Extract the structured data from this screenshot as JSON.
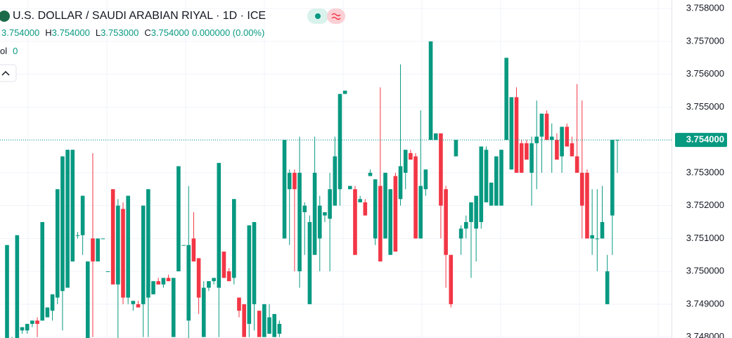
{
  "chart_data": {
    "type": "candlestick",
    "title": "U.S. DOLLAR / SAUDI ARABIAN RIYAL · 1D · ICE",
    "ohlc": [
      {
        "value": "3.754000"
      },
      {
        "prefix": "H",
        "value": "3.754000"
      },
      {
        "prefix": "L",
        "value": "3.753000"
      },
      {
        "prefix": "C",
        "value": "3.754000"
      }
    ],
    "change": "0.000000 (0.00%)",
    "volume_label": "ol",
    "volume_value": "0",
    "up_color": "#089981",
    "down_color": "#f23645",
    "ylim": [
      3.74797,
      3.75826
    ],
    "yticks": [
      {
        "value": 3.748,
        "label": "3.748000"
      },
      {
        "value": 3.749,
        "label": "3.749000"
      },
      {
        "value": 3.75,
        "label": "3.750000"
      },
      {
        "value": 3.751,
        "label": "3.751000"
      },
      {
        "value": 3.752,
        "label": "3.752000"
      },
      {
        "value": 3.753,
        "label": "3.753000"
      },
      {
        "value": 3.754,
        "label": "3.754000"
      },
      {
        "value": 3.755,
        "label": "3.755000"
      },
      {
        "value": 3.756,
        "label": "3.756000"
      },
      {
        "value": 3.757,
        "label": "3.757000"
      },
      {
        "value": 3.758,
        "label": "3.758000"
      }
    ],
    "last_price": {
      "value": 3.754,
      "label": "3.754000"
    },
    "grid": true,
    "candles": [
      [
        3.7478,
        3.7508,
        3.7477,
        3.7508
      ],
      [
        3.7479,
        3.748,
        3.7478,
        3.7479
      ],
      [
        3.7479,
        3.7511,
        3.7478,
        3.7511
      ],
      [
        3.7482,
        3.7483,
        3.7481,
        3.7483
      ],
      [
        3.7482,
        3.7484,
        3.7481,
        3.7484
      ],
      [
        3.7484,
        3.7485,
        3.7483,
        3.7485
      ],
      [
        3.7485,
        3.7486,
        3.748,
        3.7484
      ],
      [
        3.7485,
        3.7515,
        3.7485,
        3.7515
      ],
      [
        3.7486,
        3.7489,
        3.7486,
        3.7489
      ],
      [
        3.7488,
        3.7493,
        3.7485,
        3.7493
      ],
      [
        3.7492,
        3.7525,
        3.749,
        3.7525
      ],
      [
        3.7494,
        3.7535,
        3.7482,
        3.7535
      ],
      [
        3.7495,
        3.7537,
        3.7495,
        3.7537
      ],
      [
        3.7503,
        3.7537,
        3.7503,
        3.7537
      ],
      [
        3.7511,
        3.7512,
        3.751,
        3.7511
      ],
      [
        3.7511,
        3.7523,
        3.7505,
        3.7523
      ],
      [
        3.7478,
        3.7503,
        3.7477,
        3.7503
      ],
      [
        3.751,
        3.7536,
        3.748,
        3.7503
      ],
      [
        3.7503,
        3.751,
        3.7503,
        3.751
      ],
      [
        3.751,
        3.751,
        3.751,
        3.751
      ],
      [
        3.75,
        3.75,
        3.75,
        3.75
      ],
      [
        3.7525,
        3.7525,
        3.7496,
        3.7496
      ],
      [
        3.7496,
        3.7522,
        3.7478,
        3.752
      ],
      [
        3.7519,
        3.7521,
        3.749,
        3.7492
      ],
      [
        3.7492,
        3.7523,
        3.749,
        3.7523
      ],
      [
        3.749,
        3.7491,
        3.7488,
        3.7491
      ],
      [
        3.749,
        3.7491,
        3.7489,
        3.7489
      ],
      [
        3.749,
        3.752,
        3.748,
        3.752
      ],
      [
        3.7492,
        3.7525,
        3.748,
        3.7525
      ],
      [
        3.7493,
        3.7497,
        3.7493,
        3.7497
      ],
      [
        3.7497,
        3.7498,
        3.7496,
        3.7496
      ],
      [
        3.7496,
        3.7498,
        3.7495,
        3.7498
      ],
      [
        3.7498,
        3.7499,
        3.7497,
        3.7497
      ],
      [
        3.748,
        3.7498,
        3.748,
        3.7498
      ],
      [
        3.75,
        3.7532,
        3.75,
        3.7532
      ],
      [
        3.7508,
        3.7508,
        3.7508,
        3.7508
      ],
      [
        3.7485,
        3.7526,
        3.7478,
        3.7508
      ],
      [
        3.751,
        3.7518,
        3.7503,
        3.7503
      ],
      [
        3.7504,
        3.7504,
        3.7487,
        3.7492
      ],
      [
        3.748,
        3.7497,
        3.748,
        3.7495
      ],
      [
        3.7495,
        3.7497,
        3.7494,
        3.7497
      ],
      [
        3.7497,
        3.7498,
        3.7496,
        3.7498
      ],
      [
        3.7495,
        3.7533,
        3.748,
        3.7533
      ],
      [
        3.7506,
        3.7506,
        3.7498,
        3.7498
      ],
      [
        3.75,
        3.7501,
        3.7497,
        3.7497
      ],
      [
        3.7498,
        3.7522,
        3.7496,
        3.7522
      ],
      [
        3.7492,
        3.7492,
        3.7486,
        3.7488
      ],
      [
        3.749,
        3.749,
        3.748,
        3.748
      ],
      [
        3.7484,
        3.7514,
        3.748,
        3.7514
      ],
      [
        3.749,
        3.7515,
        3.7482,
        3.7515
      ],
      [
        3.7488,
        3.7488,
        3.748,
        3.748
      ],
      [
        3.748,
        3.749,
        3.748,
        3.749
      ],
      [
        3.7481,
        3.749,
        3.7481,
        3.7486
      ],
      [
        3.748,
        3.7487,
        3.748,
        3.7487
      ],
      [
        3.7481,
        3.7485,
        3.748,
        3.7484
      ],
      [
        3.751,
        3.754,
        3.751,
        3.754
      ],
      [
        3.7525,
        3.7531,
        3.7508,
        3.753
      ],
      [
        3.753,
        3.7531,
        3.75,
        3.7525
      ],
      [
        3.75,
        3.7541,
        3.7495,
        3.753
      ],
      [
        3.7518,
        3.7521,
        3.7505,
        3.752
      ],
      [
        3.749,
        3.7517,
        3.749,
        3.7515
      ],
      [
        3.7505,
        3.7541,
        3.7505,
        3.753
      ],
      [
        3.751,
        3.7523,
        3.75,
        3.752
      ],
      [
        3.7517,
        3.7518,
        3.7515,
        3.7518
      ],
      [
        3.7516,
        3.753,
        3.75,
        3.7525
      ],
      [
        3.752,
        3.7541,
        3.752,
        3.7535
      ],
      [
        3.7525,
        3.7554,
        3.752,
        3.7554
      ],
      [
        3.7554,
        3.7555,
        3.7554,
        3.7555
      ],
      [
        3.7525,
        3.7526,
        3.7525,
        3.7526
      ],
      [
        3.7525,
        3.7526,
        3.7505,
        3.7505
      ],
      [
        3.7521,
        3.7523,
        3.7521,
        3.7522
      ],
      [
        3.7521,
        3.7522,
        3.7517,
        3.7517
      ],
      [
        3.7529,
        3.7531,
        3.7529,
        3.753
      ],
      [
        3.751,
        3.7528,
        3.7508,
        3.7528
      ],
      [
        3.7526,
        3.7556,
        3.7503,
        3.7503
      ],
      [
        3.751,
        3.753,
        3.751,
        3.753
      ],
      [
        3.7505,
        3.7525,
        3.7505,
        3.7525
      ],
      [
        3.7529,
        3.753,
        3.7506,
        3.7506
      ],
      [
        3.7522,
        3.7563,
        3.752,
        3.7532
      ],
      [
        3.753,
        3.7537,
        3.7525,
        3.7537
      ],
      [
        3.7536,
        3.7537,
        3.7534,
        3.7534
      ],
      [
        3.7535,
        3.7536,
        3.751,
        3.751
      ],
      [
        3.751,
        3.7549,
        3.751,
        3.7526
      ],
      [
        3.7525,
        3.7531,
        3.7523,
        3.7531
      ],
      [
        3.754,
        3.757,
        3.754,
        3.757
      ],
      [
        3.754,
        3.7542,
        3.754,
        3.7542
      ],
      [
        3.7542,
        3.7542,
        3.751,
        3.752
      ],
      [
        3.7525,
        3.7526,
        3.7495,
        3.7505
      ],
      [
        3.7505,
        3.7505,
        3.7489,
        3.749
      ],
      [
        3.7535,
        3.754,
        3.7535,
        3.754
      ],
      [
        3.751,
        3.7514,
        3.7505,
        3.7513
      ],
      [
        3.7513,
        3.7517,
        3.751,
        3.7515
      ],
      [
        3.7515,
        3.7521,
        3.7498,
        3.7521
      ],
      [
        3.7513,
        3.7523,
        3.7503,
        3.7523
      ],
      [
        3.7515,
        3.7538,
        3.7513,
        3.7538
      ],
      [
        3.7521,
        3.7538,
        3.7521,
        3.7537
      ],
      [
        3.752,
        3.7527,
        3.752,
        3.7527
      ],
      [
        3.752,
        3.7535,
        3.752,
        3.7535
      ],
      [
        3.752,
        3.7537,
        3.752,
        3.7537
      ],
      [
        3.754,
        3.7565,
        3.754,
        3.7565
      ],
      [
        3.7531,
        3.7553,
        3.7531,
        3.7553
      ],
      [
        3.7553,
        3.7556,
        3.753,
        3.753
      ],
      [
        3.7539,
        3.754,
        3.753,
        3.753
      ],
      [
        3.7539,
        3.754,
        3.7534,
        3.7534
      ],
      [
        3.753,
        3.7541,
        3.752,
        3.7539
      ],
      [
        3.7539,
        3.7552,
        3.7525,
        3.7541
      ],
      [
        3.7541,
        3.7548,
        3.753,
        3.7548
      ],
      [
        3.7548,
        3.7549,
        3.754,
        3.754
      ],
      [
        3.754,
        3.7545,
        3.753,
        3.7541
      ],
      [
        3.754,
        3.7542,
        3.7534,
        3.7534
      ],
      [
        3.7535,
        3.7544,
        3.753,
        3.7544
      ],
      [
        3.7544,
        3.7545,
        3.7538,
        3.7538
      ],
      [
        3.7539,
        3.7541,
        3.7535,
        3.7535
      ],
      [
        3.7535,
        3.7557,
        3.753,
        3.753
      ],
      [
        3.753,
        3.7552,
        3.751,
        3.752
      ],
      [
        3.753,
        3.7531,
        3.751,
        3.751
      ],
      [
        3.751,
        3.7525,
        3.7505,
        3.7511
      ],
      [
        3.751,
        3.7525,
        3.75,
        3.751
      ],
      [
        3.751,
        3.7526,
        3.751,
        3.7515
      ],
      [
        3.749,
        3.7505,
        3.749,
        3.75
      ],
      [
        3.7517,
        3.754,
        3.7505,
        3.754
      ],
      [
        3.754,
        3.754,
        3.753,
        3.754
      ]
    ]
  }
}
